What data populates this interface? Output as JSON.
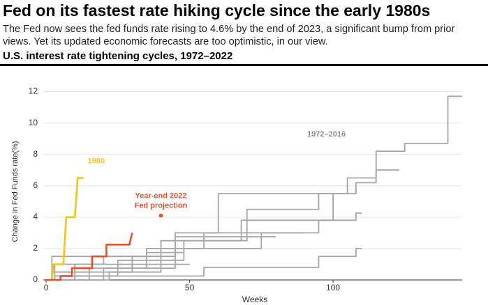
{
  "title": "Fed on its fastest rate hiking cycle since the early 1980s",
  "subtitle": "The Fed now sees the fed funds rate rising to 4.6% by the end of 2023, a significant bump from prior views. Yet its updated economic forecasts are too optimistic, in our view.",
  "chart_data": {
    "type": "line",
    "title": "U.S. interest rate tightening cycles, 1972–2022",
    "xlabel": "Weeks",
    "ylabel": "Change in Fed Funds rate(%)",
    "xlim": [
      -1,
      145
    ],
    "ylim": [
      0,
      12.6
    ],
    "xticks": [
      0,
      50,
      100
    ],
    "yticks": [
      0,
      2,
      4,
      6,
      8,
      10,
      12
    ],
    "grid": true,
    "annotation": "1972–2016",
    "projection": {
      "label": [
        "Year-end 2022",
        "Fed projection"
      ],
      "x": 40,
      "y": 4.1,
      "color": "#e8502b"
    },
    "series": [
      {
        "color": "#a6a6a6",
        "x": [
          0,
          3,
          3,
          20,
          20,
          35,
          35,
          55,
          55,
          70,
          70,
          95,
          95,
          105,
          105,
          115,
          115,
          125,
          125,
          140,
          140,
          145
        ],
        "values": [
          0,
          0,
          1,
          1,
          1.5,
          1.5,
          2,
          2,
          3,
          3,
          4.5,
          4.5,
          5.5,
          5.5,
          6.5,
          6.5,
          8.2,
          8.2,
          8.7,
          8.7,
          11.7,
          11.7
        ]
      },
      {
        "color": "#a6a6a6",
        "x": [
          0,
          10,
          10,
          40,
          40,
          68,
          68,
          100,
          100,
          108,
          108,
          115,
          115,
          123
        ],
        "values": [
          0,
          0,
          1,
          1,
          2.5,
          2.5,
          3.8,
          3.8,
          5.5,
          5.5,
          6.2,
          6.2,
          7,
          7
        ]
      },
      {
        "color": "#a6a6a6",
        "x": [
          0,
          15,
          15,
          45,
          45,
          75,
          75,
          95,
          95,
          108,
          108,
          110
        ],
        "values": [
          0,
          0,
          0.75,
          0.75,
          2,
          2,
          3,
          3,
          3.8,
          3.8,
          4.25,
          4.25
        ]
      },
      {
        "color": "#a6a6a6",
        "x": [
          0,
          5,
          5,
          55,
          55,
          95,
          95,
          108,
          108,
          110
        ],
        "values": [
          0,
          0,
          0.25,
          0.25,
          0.8,
          0.8,
          1.5,
          1.5,
          2,
          2
        ]
      },
      {
        "color": "#a6a6a6",
        "x": [
          0,
          2,
          2,
          30,
          30,
          45,
          45,
          60,
          60,
          105
        ],
        "values": [
          0,
          0,
          0.5,
          0.5,
          1.5,
          1.5,
          3,
          3,
          5.5,
          5.5
        ]
      },
      {
        "color": "#a6a6a6",
        "x": [
          0,
          3,
          3,
          25,
          25,
          48,
          48,
          70,
          70,
          90
        ],
        "values": [
          0,
          0,
          0.25,
          0.25,
          1.25,
          1.25,
          2.5,
          2.5,
          3,
          3
        ]
      },
      {
        "color": "#a6a6a6",
        "x": [
          0,
          20,
          20,
          35,
          35,
          48
        ],
        "values": [
          0,
          0,
          0.75,
          0.75,
          1.75,
          1.75
        ]
      },
      {
        "color": "#a6a6a6",
        "x": [
          0,
          22,
          22,
          40,
          40,
          50
        ],
        "values": [
          0,
          0,
          0.5,
          0.5,
          1,
          1
        ]
      },
      {
        "color": "#a6a6a6",
        "x": [
          0,
          2,
          2,
          45,
          45,
          80
        ],
        "values": [
          0,
          0,
          1.5,
          1.5,
          2.75,
          2.75
        ]
      },
      {
        "name": "1980",
        "color": "#f2c51b",
        "x": [
          0,
          2,
          2.5,
          6,
          7,
          10,
          11,
          13
        ],
        "values": [
          0,
          0,
          1,
          1,
          4,
          4,
          6.5,
          6.5
        ]
      },
      {
        "color": "#e8502b",
        "x": [
          0,
          5,
          5,
          9,
          9,
          16,
          16,
          21,
          21,
          29,
          30
        ],
        "values": [
          0,
          0,
          0.25,
          0.25,
          0.75,
          0.75,
          1.5,
          1.5,
          2.25,
          2.25,
          3
        ]
      }
    ]
  }
}
